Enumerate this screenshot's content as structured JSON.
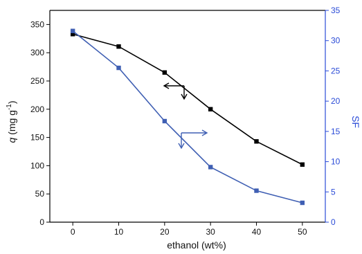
{
  "chart_data": {
    "type": "line",
    "xlabel": "ethanol (wt%)",
    "ylabel_left": {
      "main": "q",
      "unit": "(mg g",
      "exp": "-1",
      "close": ")"
    },
    "ylabel_right": "SF",
    "xlim": [
      -5,
      55
    ],
    "x_ticks": [
      0,
      10,
      20,
      30,
      40,
      50
    ],
    "ylim_left": [
      0,
      375
    ],
    "y_ticks_left": [
      0,
      50,
      100,
      150,
      200,
      250,
      300,
      350
    ],
    "ylim_right": [
      0,
      35
    ],
    "y_ticks_right": [
      0,
      5,
      10,
      15,
      20,
      25,
      30,
      35
    ],
    "series": [
      {
        "axis": "left",
        "color": "#000000",
        "x": [
          0,
          10,
          20,
          30,
          40,
          50
        ],
        "values": [
          333,
          311,
          265,
          200,
          143,
          102
        ]
      },
      {
        "axis": "right",
        "color": "#3f5fb3",
        "x": [
          0,
          10,
          20,
          30,
          40,
          50
        ],
        "values": [
          31.6,
          25.5,
          16.7,
          9.1,
          5.2,
          3.2
        ]
      }
    ],
    "grid": false,
    "legend": "none",
    "axis_colors": {
      "left": "#000000",
      "right": "#2a4bd7"
    }
  }
}
